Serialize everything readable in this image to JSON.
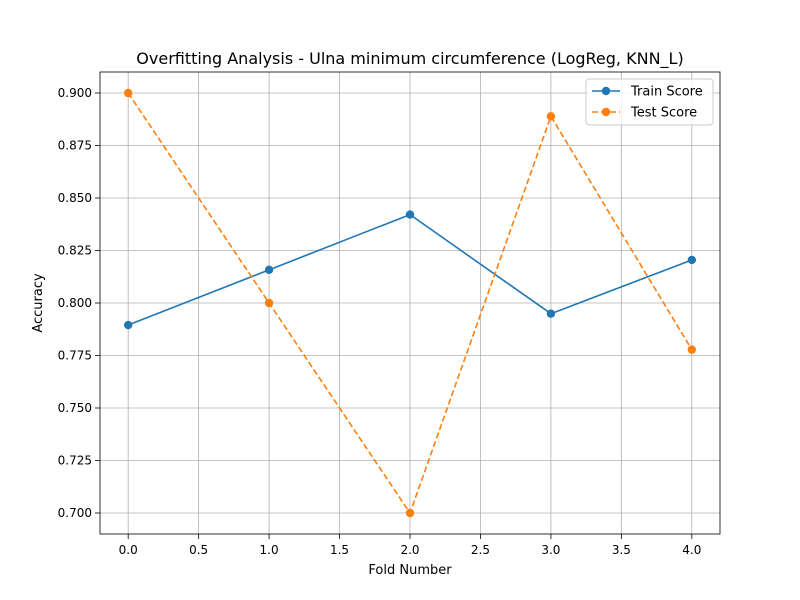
{
  "chart_data": {
    "type": "line",
    "title": "Overfitting Analysis - Ulna minimum circumference (LogReg, KNN_L)",
    "xlabel": "Fold Number",
    "ylabel": "Accuracy",
    "x": [
      0,
      1,
      2,
      3,
      4
    ],
    "xlim": [
      -0.2,
      4.2
    ],
    "ylim": [
      0.69,
      0.91
    ],
    "xticks": [
      "0.0",
      "0.5",
      "1.0",
      "1.5",
      "2.0",
      "2.5",
      "3.0",
      "3.5",
      "4.0"
    ],
    "yticks": [
      "0.700",
      "0.725",
      "0.750",
      "0.775",
      "0.800",
      "0.825",
      "0.850",
      "0.875",
      "0.900"
    ],
    "grid": true,
    "legend_position": "top-right",
    "series": [
      {
        "name": "Train Score",
        "values": [
          0.7895,
          0.8158,
          0.8421,
          0.7949,
          0.8205
        ],
        "color": "#1f77b4",
        "line_style": "solid",
        "marker": "circle"
      },
      {
        "name": "Test Score",
        "values": [
          0.9,
          0.8,
          0.7,
          0.8889,
          0.7778
        ],
        "color": "#ff7f0e",
        "line_style": "dashed",
        "marker": "circle"
      }
    ]
  }
}
